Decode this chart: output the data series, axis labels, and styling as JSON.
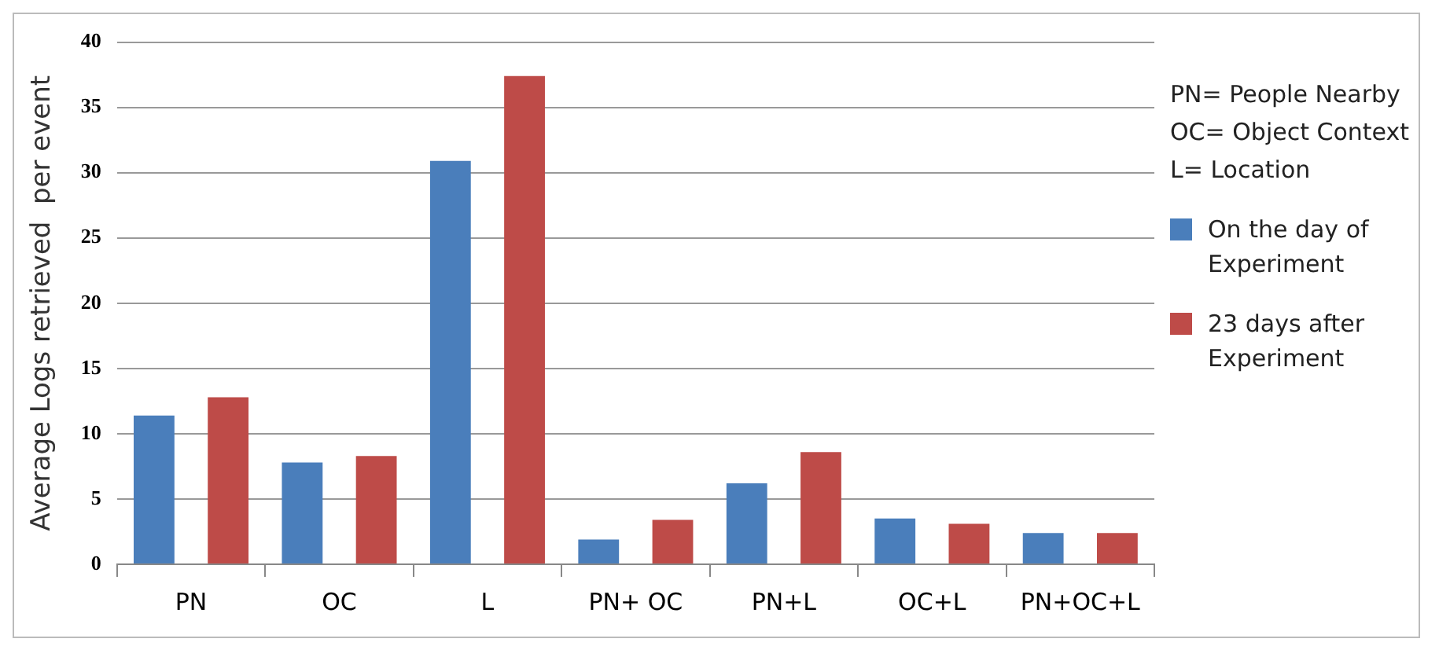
{
  "chart_data": {
    "type": "bar",
    "ylabel": "Average Logs retrieved  per event",
    "categories": [
      "PN",
      "OC",
      "L",
      "PN+ OC",
      "PN+L",
      "OC+L",
      "PN+OC+L"
    ],
    "series": [
      {
        "name": "On the day of Experiment",
        "color": "#4a7ebb",
        "values": [
          11.4,
          7.8,
          30.9,
          1.9,
          6.2,
          3.5,
          2.4
        ]
      },
      {
        "name": "23 days after Experiment",
        "color": "#be4b48",
        "values": [
          12.8,
          8.3,
          37.4,
          3.4,
          8.6,
          3.1,
          2.4
        ]
      }
    ],
    "ylim": [
      0,
      40
    ],
    "yticks": [
      0,
      5,
      10,
      15,
      20,
      25,
      30,
      35,
      40
    ],
    "grid": "y",
    "legend": "right",
    "annotations": [
      "PN= People Nearby",
      "OC= Object Context",
      "L= Location"
    ]
  }
}
